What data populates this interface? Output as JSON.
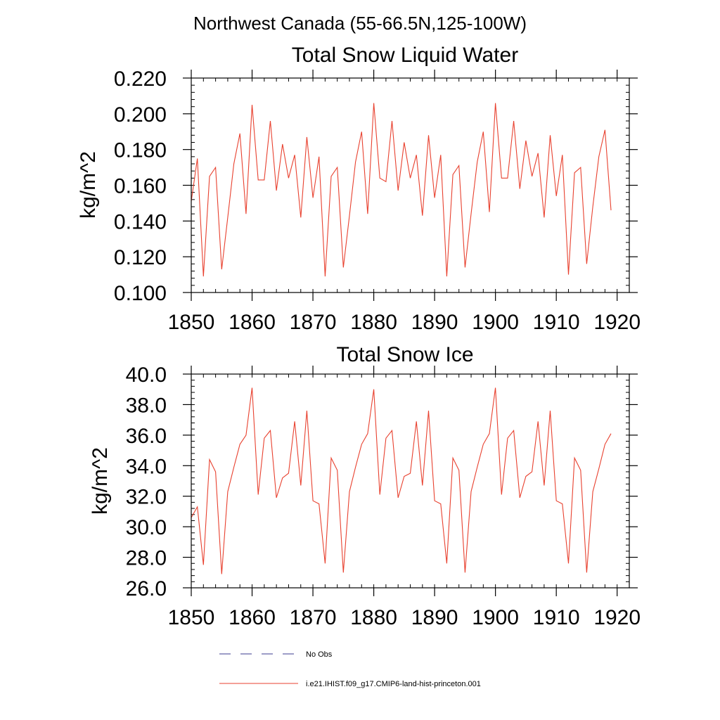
{
  "figure": {
    "suptitle": "Northwest Canada (55-66.5N,125-100W)"
  },
  "legend": {
    "items": [
      {
        "label": "No Obs",
        "color": "#3b3b8f",
        "dash": true
      },
      {
        "label": "i.e21.IHIST.f09_g17.CMIP6-land-hist-princeton.001",
        "color": "#e8412f",
        "dash": false
      }
    ]
  },
  "chart_data": [
    {
      "type": "line",
      "title": "Total Snow Liquid Water",
      "xlabel": "",
      "ylabel": "kg/m^2",
      "xlim": [
        1850,
        1922
      ],
      "ylim": [
        0.1,
        0.22
      ],
      "xticks": [
        1850,
        1860,
        1870,
        1880,
        1890,
        1900,
        1910,
        1920
      ],
      "xtick_labels": [
        "1850",
        "1860",
        "1870",
        "1880",
        "1890",
        "1900",
        "1910",
        "1920"
      ],
      "yticks": [
        0.1,
        0.12,
        0.14,
        0.16,
        0.18,
        0.2,
        0.22
      ],
      "ytick_labels": [
        "0.100",
        "0.120",
        "0.140",
        "0.160",
        "0.180",
        "0.200",
        "0.220"
      ],
      "grid": false,
      "color": "#e8412f",
      "x": [
        1850,
        1851,
        1852,
        1853,
        1854,
        1855,
        1856,
        1857,
        1858,
        1859,
        1860,
        1861,
        1862,
        1863,
        1864,
        1865,
        1866,
        1867,
        1868,
        1869,
        1870,
        1871,
        1872,
        1873,
        1874,
        1875,
        1876,
        1877,
        1878,
        1879,
        1880,
        1881,
        1882,
        1883,
        1884,
        1885,
        1886,
        1887,
        1888,
        1889,
        1890,
        1891,
        1892,
        1893,
        1894,
        1895,
        1896,
        1897,
        1898,
        1899,
        1900,
        1901,
        1902,
        1903,
        1904,
        1905,
        1906,
        1907,
        1908,
        1909,
        1910,
        1911,
        1912,
        1913,
        1914,
        1915,
        1916,
        1917,
        1918,
        1919
      ],
      "values": [
        0.151,
        0.175,
        0.109,
        0.165,
        0.17,
        0.113,
        0.142,
        0.172,
        0.189,
        0.144,
        0.205,
        0.163,
        0.163,
        0.196,
        0.157,
        0.183,
        0.164,
        0.177,
        0.142,
        0.187,
        0.153,
        0.176,
        0.109,
        0.165,
        0.17,
        0.114,
        0.143,
        0.173,
        0.19,
        0.144,
        0.206,
        0.164,
        0.162,
        0.196,
        0.157,
        0.184,
        0.164,
        0.177,
        0.143,
        0.188,
        0.153,
        0.177,
        0.109,
        0.166,
        0.171,
        0.114,
        0.144,
        0.173,
        0.19,
        0.145,
        0.206,
        0.164,
        0.164,
        0.196,
        0.158,
        0.185,
        0.165,
        0.178,
        0.142,
        0.188,
        0.154,
        0.177,
        0.11,
        0.167,
        0.17,
        0.116,
        0.148,
        0.176,
        0.191,
        0.146
      ]
    },
    {
      "type": "line",
      "title": "Total Snow Ice",
      "xlabel": "",
      "ylabel": "kg/m^2",
      "xlim": [
        1850,
        1922
      ],
      "ylim": [
        26.0,
        40.0
      ],
      "xticks": [
        1850,
        1860,
        1870,
        1880,
        1890,
        1900,
        1910,
        1920
      ],
      "xtick_labels": [
        "1850",
        "1860",
        "1870",
        "1880",
        "1890",
        "1900",
        "1910",
        "1920"
      ],
      "yticks": [
        26,
        28,
        30,
        32,
        34,
        36,
        38,
        40
      ],
      "ytick_labels": [
        "26.0",
        "28.0",
        "30.0",
        "32.0",
        "34.0",
        "36.0",
        "38.0",
        "40.0"
      ],
      "grid": false,
      "color": "#e8412f",
      "x": [
        1850,
        1851,
        1852,
        1853,
        1854,
        1855,
        1856,
        1857,
        1858,
        1859,
        1860,
        1861,
        1862,
        1863,
        1864,
        1865,
        1866,
        1867,
        1868,
        1869,
        1870,
        1871,
        1872,
        1873,
        1874,
        1875,
        1876,
        1877,
        1878,
        1879,
        1880,
        1881,
        1882,
        1883,
        1884,
        1885,
        1886,
        1887,
        1888,
        1889,
        1890,
        1891,
        1892,
        1893,
        1894,
        1895,
        1896,
        1897,
        1898,
        1899,
        1900,
        1901,
        1902,
        1903,
        1904,
        1905,
        1906,
        1907,
        1908,
        1909,
        1910,
        1911,
        1912,
        1913,
        1914,
        1915,
        1916,
        1917,
        1918,
        1919
      ],
      "values": [
        30.6,
        31.3,
        27.5,
        34.4,
        33.6,
        26.9,
        32.3,
        33.9,
        35.4,
        36.0,
        39.1,
        32.1,
        35.8,
        36.3,
        31.9,
        33.2,
        33.5,
        36.9,
        32.7,
        37.6,
        31.7,
        31.5,
        27.6,
        34.5,
        33.7,
        27.0,
        32.3,
        33.9,
        35.4,
        36.1,
        39.0,
        32.1,
        35.8,
        36.3,
        31.9,
        33.3,
        33.5,
        36.9,
        32.7,
        37.6,
        31.7,
        31.5,
        27.6,
        34.5,
        33.7,
        27.0,
        32.3,
        33.9,
        35.4,
        36.1,
        39.1,
        32.1,
        35.8,
        36.3,
        31.9,
        33.3,
        33.6,
        36.9,
        32.7,
        37.6,
        31.7,
        31.5,
        27.6,
        34.5,
        33.7,
        27.0,
        32.3,
        33.8,
        35.4,
        36.1
      ]
    }
  ]
}
